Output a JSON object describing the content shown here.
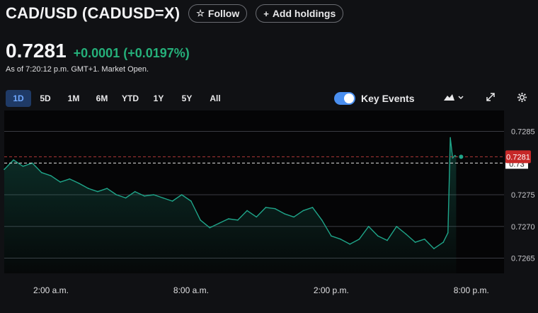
{
  "header": {
    "title": "CAD/USD (CADUSD=X)",
    "follow_label": "Follow",
    "add_holdings_label": "Add holdings"
  },
  "quote": {
    "price": "0.7281",
    "change": "+0.0001",
    "change_pct": "(+0.0197%)",
    "as_of": "As of 7:20:12 p.m. GMT+1. Market Open."
  },
  "ranges": [
    "1D",
    "5D",
    "1M",
    "6M",
    "YTD",
    "1Y",
    "5Y",
    "All"
  ],
  "active_range": "1D",
  "key_events_label": "Key Events",
  "icons": [
    "star-icon",
    "plus-icon",
    "mountain-chart-icon",
    "chevron-down-icon",
    "expand-icon",
    "gear-icon"
  ],
  "colors": {
    "line": "#1fa589",
    "positive": "#25b07a",
    "price_tag": "#c62828",
    "active_range": "#1f3a66",
    "toggle": "#4a8ff0"
  },
  "chart_data": {
    "type": "area",
    "x_tick_labels": [
      "2:00 a.m.",
      "8:00 a.m.",
      "2:00 p.m.",
      "8:00 p.m."
    ],
    "x_tick_hours": [
      2,
      8,
      14,
      20
    ],
    "y_tick_labels": [
      "0.7285",
      "0.7275",
      "0.7270",
      "0.7265"
    ],
    "y_ticks": [
      0.7285,
      0.7275,
      0.727,
      0.7265
    ],
    "ylim": [
      0.72626,
      0.72883
    ],
    "xlim": [
      0.0,
      21.4
    ],
    "previous_close": 0.728,
    "previous_close_label": "0.73",
    "last_price": 0.7281,
    "last_price_label": "0.7281",
    "grid": true,
    "x_hours": [
      0.0,
      0.4,
      0.8,
      1.2,
      1.6,
      2.0,
      2.4,
      2.8,
      3.2,
      3.6,
      4.0,
      4.4,
      4.8,
      5.2,
      5.6,
      6.0,
      6.4,
      6.8,
      7.2,
      7.6,
      8.0,
      8.4,
      8.8,
      9.2,
      9.6,
      10.0,
      10.4,
      10.8,
      11.2,
      11.6,
      12.0,
      12.4,
      12.8,
      13.2,
      13.6,
      14.0,
      14.4,
      14.8,
      15.2,
      15.6,
      16.0,
      16.4,
      16.8,
      17.2,
      17.6,
      18.0,
      18.4,
      18.8,
      19.0,
      19.1,
      19.2,
      19.3,
      19.35
    ],
    "values": [
      0.7279,
      0.72805,
      0.72795,
      0.728,
      0.72785,
      0.7278,
      0.7277,
      0.72775,
      0.72768,
      0.7276,
      0.72755,
      0.7276,
      0.7275,
      0.72745,
      0.72755,
      0.72748,
      0.7275,
      0.72745,
      0.7274,
      0.7275,
      0.7274,
      0.7271,
      0.72698,
      0.72705,
      0.72712,
      0.7271,
      0.72725,
      0.72715,
      0.7273,
      0.72728,
      0.7272,
      0.72715,
      0.72725,
      0.7273,
      0.7271,
      0.72685,
      0.7268,
      0.72672,
      0.7268,
      0.727,
      0.72685,
      0.72678,
      0.727,
      0.72688,
      0.72675,
      0.7268,
      0.72665,
      0.72675,
      0.7269,
      0.7284,
      0.72808,
      0.72812,
      0.7281
    ]
  }
}
